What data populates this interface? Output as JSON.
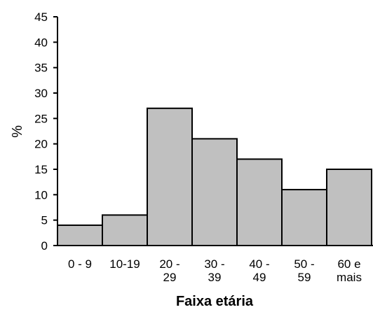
{
  "chart_data": {
    "type": "bar",
    "title": "",
    "xlabel": "Faixa etária",
    "ylabel": "%",
    "categories": [
      "0 - 9",
      "10-19",
      "20 - 29",
      "30 - 39",
      "40 - 49",
      "50 - 59",
      "60 e mais"
    ],
    "category_lines": [
      [
        "0 - 9"
      ],
      [
        "10-19"
      ],
      [
        "20 -",
        "29"
      ],
      [
        "30 -",
        "39"
      ],
      [
        "40 -",
        "49"
      ],
      [
        "50 -",
        "59"
      ],
      [
        "60 e",
        "mais"
      ]
    ],
    "values": [
      4,
      6,
      27,
      21,
      17,
      11,
      15
    ],
    "ylim": [
      0,
      45
    ],
    "yticks": [
      0,
      5,
      10,
      15,
      20,
      25,
      30,
      35,
      40,
      45
    ],
    "grid": false,
    "legend": "none",
    "colors": {
      "bar_fill": "#c0c0c0",
      "bar_stroke": "#000000",
      "axis": "#000000",
      "text": "#000000"
    }
  }
}
